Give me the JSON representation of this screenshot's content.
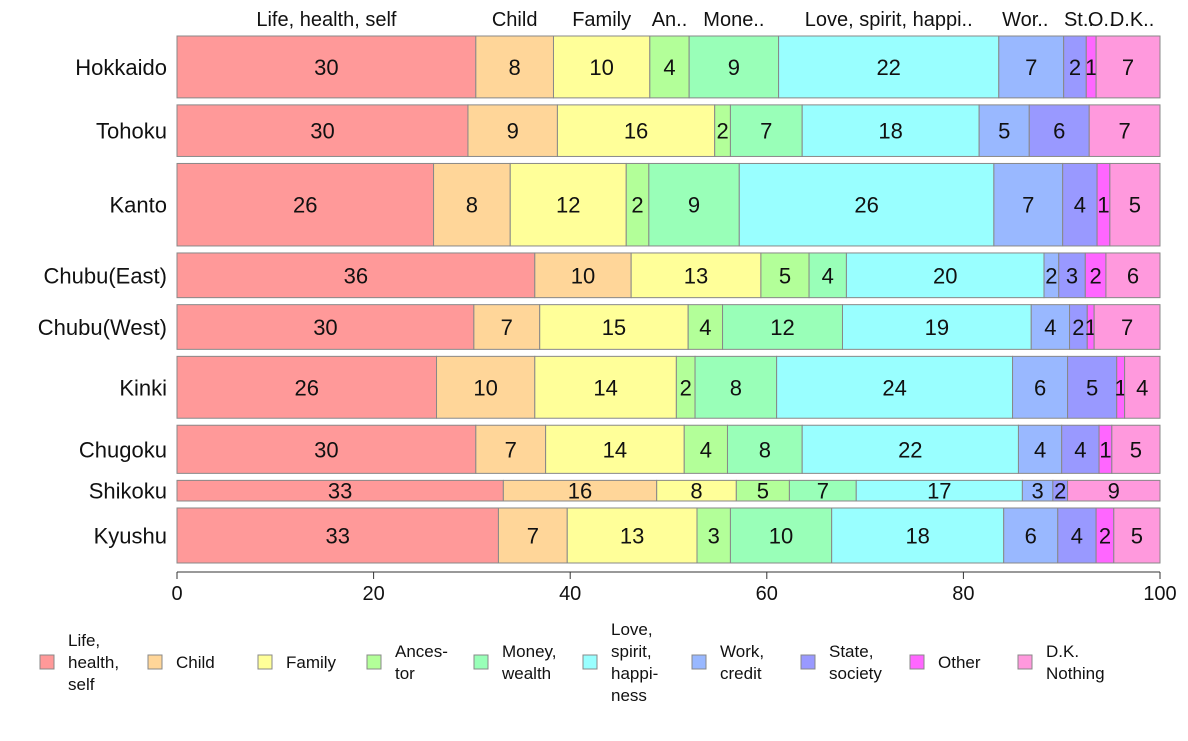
{
  "chart_data": {
    "type": "bar",
    "orientation": "horizontal",
    "stacked": "percent",
    "categories": [
      "Hokkaido",
      "Tohoku",
      "Kanto",
      "Chubu(East)",
      "Chubu(West)",
      "Kinki",
      "Chugoku",
      "Shikoku",
      "Kyushu"
    ],
    "category_weights": [
      0.9,
      0.75,
      1.2,
      0.65,
      0.65,
      0.9,
      0.7,
      0.3,
      0.8
    ],
    "series": [
      {
        "name": "Life, health, self",
        "values": [
          30.4,
          29.6,
          26.1,
          36.4,
          30.2,
          26.4,
          30.4,
          33.2,
          32.7
        ],
        "color": "#ff9999"
      },
      {
        "name": "Child",
        "values": [
          7.9,
          9.1,
          7.8,
          9.8,
          6.7,
          10.0,
          7.1,
          15.6,
          7.0
        ],
        "color": "#ffd699"
      },
      {
        "name": "Family",
        "values": [
          9.8,
          16.0,
          11.8,
          13.2,
          15.1,
          14.4,
          14.1,
          8.1,
          13.2
        ],
        "color": "#ffff99"
      },
      {
        "name": "Ances- tor",
        "values": [
          4.0,
          1.6,
          2.3,
          4.9,
          3.5,
          1.9,
          4.4,
          5.4,
          3.4
        ],
        "color": "#b3ff99"
      },
      {
        "name": "Money, wealth",
        "values": [
          9.1,
          7.3,
          9.2,
          3.8,
          12.2,
          8.3,
          7.6,
          6.8,
          10.3
        ],
        "color": "#99ffb8"
      },
      {
        "name": "Love, spirit, happi- ness",
        "values": [
          22.4,
          18.0,
          25.9,
          20.1,
          19.2,
          24.0,
          22.0,
          16.9,
          17.5
        ],
        "color": "#99ffff"
      },
      {
        "name": "Work, credit",
        "values": [
          6.6,
          5.1,
          7.0,
          1.5,
          3.9,
          5.6,
          4.4,
          3.1,
          5.5
        ],
        "color": "#99b8ff"
      },
      {
        "name": "State, society",
        "values": [
          2.3,
          6.1,
          3.5,
          2.7,
          1.8,
          5.0,
          3.8,
          1.5,
          3.9
        ],
        "color": "#9999ff"
      },
      {
        "name": "Other",
        "values": [
          1.0,
          0.0,
          1.3,
          2.1,
          0.7,
          0.8,
          1.3,
          0.0,
          1.8
        ],
        "color": "#ff66ff"
      },
      {
        "name": "D.K. Nothing",
        "values": [
          6.5,
          7.2,
          5.1,
          5.5,
          6.7,
          3.6,
          4.9,
          9.4,
          4.7
        ],
        "color": "#ff99dd"
      }
    ],
    "top_labels": [
      "Life, health, self",
      "Child",
      "Family",
      "An..",
      "Mone..",
      "Love, spirit, happi..",
      "Wor..",
      "St..",
      "O..",
      "D.K.."
    ],
    "legend": [
      {
        "lines": [
          "Life,",
          "health,",
          "self"
        ]
      },
      {
        "lines": [
          "Child"
        ]
      },
      {
        "lines": [
          "Family"
        ]
      },
      {
        "lines": [
          "Ances-",
          "tor"
        ]
      },
      {
        "lines": [
          "Money,",
          "wealth"
        ]
      },
      {
        "lines": [
          "Love,",
          "spirit,",
          "happi-",
          "ness"
        ]
      },
      {
        "lines": [
          "Work,",
          "credit"
        ]
      },
      {
        "lines": [
          "State,",
          "society"
        ]
      },
      {
        "lines": [
          "Other"
        ]
      },
      {
        "lines": [
          "D.K.",
          "Nothing"
        ]
      }
    ],
    "xlim": [
      0,
      100
    ],
    "xticks": [
      "0",
      "20",
      "40",
      "60",
      "80",
      "100"
    ],
    "xlabel": "",
    "ylabel": "",
    "title": "",
    "grid": false,
    "legend_position": "bottom"
  }
}
